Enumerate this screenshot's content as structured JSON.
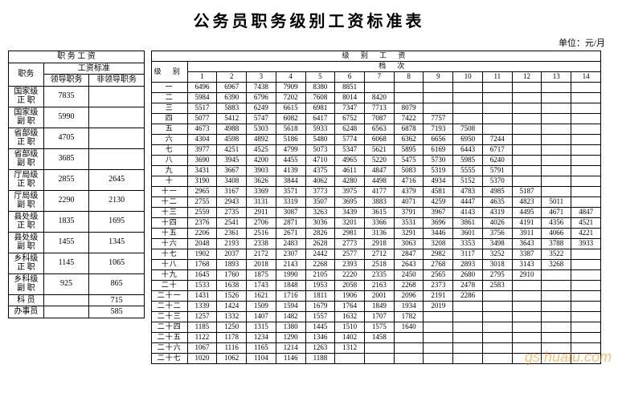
{
  "title": "公务员职务级别工资标准表",
  "unit": "单位：元/月",
  "watermark": "gs.huatu.com",
  "left": {
    "header_top": "职 务 工 资",
    "header_std": "工资标准",
    "header_pos": "职务",
    "col_lead": "领导职务",
    "col_nonlead": "非领导职务",
    "rows": [
      {
        "pos": "国家级\n正 职",
        "lead": "7835",
        "non": ""
      },
      {
        "pos": "国家级\n副 职",
        "lead": "5990",
        "non": ""
      },
      {
        "pos": "省部级\n正 职",
        "lead": "4705",
        "non": ""
      },
      {
        "pos": "省部级\n副 职",
        "lead": "3685",
        "non": ""
      },
      {
        "pos": "厅局级\n正 职",
        "lead": "2855",
        "non": "2645"
      },
      {
        "pos": "厅局级\n副 职",
        "lead": "2290",
        "non": "2130"
      },
      {
        "pos": "县处级\n正 职",
        "lead": "1835",
        "non": "1695"
      },
      {
        "pos": "县处级\n副 职",
        "lead": "1455",
        "non": "1345"
      },
      {
        "pos": "乡科级\n正 职",
        "lead": "1145",
        "non": "1065"
      },
      {
        "pos": "乡科级\n副 职",
        "lead": "925",
        "non": "865"
      },
      {
        "pos": "科 员",
        "lead": "",
        "non": "715"
      },
      {
        "pos": "办事员",
        "lead": "",
        "non": "585"
      }
    ]
  },
  "right": {
    "header_top": "级 别 工 资",
    "header_level": "级 别",
    "header_grade": "档 次",
    "grades": [
      "1",
      "2",
      "3",
      "4",
      "5",
      "6",
      "7",
      "8",
      "9",
      "10",
      "11",
      "12",
      "13",
      "14"
    ],
    "rows": [
      {
        "l": "一",
        "v": [
          "6496",
          "6967",
          "7438",
          "7909",
          "8380",
          "8851",
          "",
          "",
          "",
          "",
          "",
          "",
          "",
          ""
        ]
      },
      {
        "l": "二",
        "v": [
          "5984",
          "6390",
          "6796",
          "7202",
          "7608",
          "8014",
          "8420",
          "",
          "",
          "",
          "",
          "",
          "",
          ""
        ]
      },
      {
        "l": "三",
        "v": [
          "5517",
          "5883",
          "6249",
          "6615",
          "6981",
          "7347",
          "7713",
          "8079",
          "",
          "",
          "",
          "",
          "",
          ""
        ]
      },
      {
        "l": "四",
        "v": [
          "5077",
          "5412",
          "5747",
          "6082",
          "6417",
          "6752",
          "7087",
          "7422",
          "7757",
          "",
          "",
          "",
          "",
          ""
        ]
      },
      {
        "l": "五",
        "v": [
          "4673",
          "4988",
          "5303",
          "5618",
          "5933",
          "6248",
          "6563",
          "6878",
          "7193",
          "7508",
          "",
          "",
          "",
          ""
        ]
      },
      {
        "l": "六",
        "v": [
          "4304",
          "4598",
          "4892",
          "5186",
          "5480",
          "5774",
          "6068",
          "6362",
          "6656",
          "6950",
          "7244",
          "",
          "",
          ""
        ]
      },
      {
        "l": "七",
        "v": [
          "3977",
          "4251",
          "4525",
          "4799",
          "5073",
          "5347",
          "5621",
          "5895",
          "6169",
          "6443",
          "6717",
          "",
          "",
          ""
        ]
      },
      {
        "l": "八",
        "v": [
          "3690",
          "3945",
          "4200",
          "4455",
          "4710",
          "4965",
          "5220",
          "5475",
          "5730",
          "5985",
          "6240",
          "",
          "",
          ""
        ]
      },
      {
        "l": "九",
        "v": [
          "3431",
          "3667",
          "3903",
          "4139",
          "4375",
          "4611",
          "4847",
          "5083",
          "5319",
          "5555",
          "5791",
          "",
          "",
          ""
        ]
      },
      {
        "l": "十",
        "v": [
          "3190",
          "3408",
          "3626",
          "3844",
          "4062",
          "4280",
          "4498",
          "4716",
          "4934",
          "5152",
          "5370",
          "",
          "",
          ""
        ]
      },
      {
        "l": "十一",
        "v": [
          "2965",
          "3167",
          "3369",
          "3571",
          "3773",
          "3975",
          "4177",
          "4379",
          "4581",
          "4783",
          "4985",
          "5187",
          "",
          ""
        ]
      },
      {
        "l": "十二",
        "v": [
          "2755",
          "2943",
          "3131",
          "3319",
          "3507",
          "3695",
          "3883",
          "4071",
          "4259",
          "4447",
          "4635",
          "4823",
          "5011",
          ""
        ]
      },
      {
        "l": "十三",
        "v": [
          "2559",
          "2735",
          "2911",
          "3087",
          "3263",
          "3439",
          "3615",
          "3791",
          "3967",
          "4143",
          "4319",
          "4495",
          "4671",
          "4847"
        ]
      },
      {
        "l": "十四",
        "v": [
          "2376",
          "2541",
          "2706",
          "2871",
          "3036",
          "3201",
          "3366",
          "3531",
          "3696",
          "3861",
          "4026",
          "4191",
          "4356",
          "4521"
        ]
      },
      {
        "l": "十五",
        "v": [
          "2206",
          "2361",
          "2516",
          "2671",
          "2826",
          "2981",
          "3136",
          "3291",
          "3446",
          "3601",
          "3756",
          "3911",
          "4066",
          "4221"
        ]
      },
      {
        "l": "十六",
        "v": [
          "2048",
          "2193",
          "2338",
          "2483",
          "2628",
          "2773",
          "2918",
          "3063",
          "3208",
          "3353",
          "3498",
          "3643",
          "3788",
          "3933"
        ]
      },
      {
        "l": "十七",
        "v": [
          "1902",
          "2037",
          "2172",
          "2307",
          "2442",
          "2577",
          "2712",
          "2847",
          "2982",
          "3117",
          "3252",
          "3387",
          "3522",
          ""
        ]
      },
      {
        "l": "十八",
        "v": [
          "1768",
          "1893",
          "2018",
          "2143",
          "2268",
          "2393",
          "2518",
          "2643",
          "2768",
          "2893",
          "3018",
          "3143",
          "3268",
          ""
        ]
      },
      {
        "l": "十九",
        "v": [
          "1645",
          "1760",
          "1875",
          "1990",
          "2105",
          "2220",
          "2335",
          "2450",
          "2565",
          "2680",
          "2795",
          "2910",
          "",
          ""
        ]
      },
      {
        "l": "二十",
        "v": [
          "1533",
          "1638",
          "1743",
          "1848",
          "1953",
          "2058",
          "2163",
          "2268",
          "2373",
          "2478",
          "2583",
          "",
          "",
          ""
        ]
      },
      {
        "l": "二十一",
        "v": [
          "1431",
          "1526",
          "1621",
          "1716",
          "1811",
          "1906",
          "2001",
          "2096",
          "2191",
          "2286",
          "",
          "",
          "",
          ""
        ]
      },
      {
        "l": "二十二",
        "v": [
          "1339",
          "1424",
          "1509",
          "1594",
          "1679",
          "1764",
          "1849",
          "1934",
          "2019",
          "",
          "",
          "",
          "",
          ""
        ]
      },
      {
        "l": "二十三",
        "v": [
          "1257",
          "1332",
          "1407",
          "1482",
          "1557",
          "1632",
          "1707",
          "1782",
          "",
          "",
          "",
          "",
          "",
          ""
        ]
      },
      {
        "l": "二十四",
        "v": [
          "1185",
          "1250",
          "1315",
          "1380",
          "1445",
          "1510",
          "1575",
          "1640",
          "",
          "",
          "",
          "",
          "",
          ""
        ]
      },
      {
        "l": "二十五",
        "v": [
          "1122",
          "1178",
          "1234",
          "1290",
          "1346",
          "1402",
          "1458",
          "",
          "",
          "",
          "",
          "",
          "",
          ""
        ]
      },
      {
        "l": "二十六",
        "v": [
          "1067",
          "1116",
          "1165",
          "1214",
          "1263",
          "1312",
          "",
          "",
          "",
          "",
          "",
          "",
          "",
          ""
        ]
      },
      {
        "l": "二十七",
        "v": [
          "1020",
          "1062",
          "1104",
          "1146",
          "1188",
          "",
          "",
          "",
          "",
          "",
          "",
          "",
          "",
          ""
        ]
      }
    ]
  },
  "colors": {
    "text": "#000000",
    "bg": "#ffffff",
    "border": "#000000",
    "watermark": "rgba(240,140,0,0.55)"
  }
}
